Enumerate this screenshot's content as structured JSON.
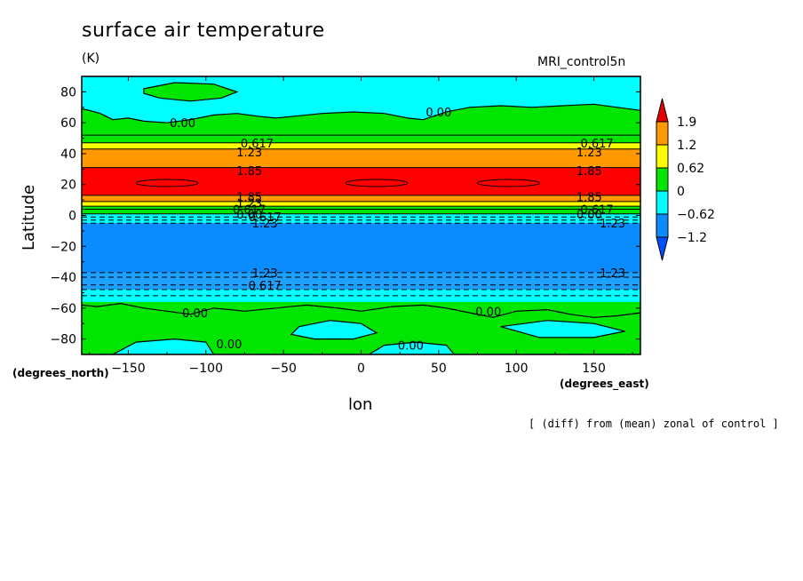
{
  "chart_data": {
    "type": "heatmap",
    "title": "surface air temperature",
    "units": "(K)",
    "run_label": "MRI_control5n",
    "xlabel": "lon",
    "ylabel": "Latitude",
    "xunit_label": "(degrees_east)",
    "yunit_label": "(degrees_north)",
    "note": "[ (diff) from (mean) zonal of control ]",
    "xlim": [
      -180,
      180
    ],
    "ylim": [
      -90,
      90
    ],
    "xticks": [
      "-150",
      "-100",
      "-50",
      "0",
      "50",
      "100",
      "150"
    ],
    "yticks": [
      "80",
      "60",
      "40",
      "20",
      "0",
      "-20",
      "-40",
      "-60",
      "-80"
    ],
    "colorbar": {
      "labels": [
        "1.9",
        "1.2",
        "0.62",
        "0",
        "−0.62",
        "−1.2"
      ],
      "colors": [
        "#e60000",
        "#ff9900",
        "#ffff00",
        "#00e600",
        "#00ffff",
        "#0a8cff",
        "#0050ff"
      ]
    },
    "zonal_bands": [
      {
        "lat_from": 90,
        "lat_to": 52,
        "class": "0 to 0.62",
        "color": "#00e600"
      },
      {
        "lat_from": 52,
        "lat_to": 47,
        "class": "0 to 0.62",
        "color": "#00e600"
      },
      {
        "lat_from": 47,
        "lat_to": 43,
        "class": "0.62 to 1.2",
        "color": "#ffff00"
      },
      {
        "lat_from": 43,
        "lat_to": 31,
        "class": "1.2 to 1.9",
        "color": "#ff9900"
      },
      {
        "lat_from": 31,
        "lat_to": 13,
        "class": "> 1.9",
        "color": "#ff0000"
      },
      {
        "lat_from": 13,
        "lat_to": 9,
        "class": "1.2 to 1.9",
        "color": "#ff9900"
      },
      {
        "lat_from": 9,
        "lat_to": 6,
        "class": "0.62 to 1.2",
        "color": "#ffff00"
      },
      {
        "lat_from": 6,
        "lat_to": 1,
        "class": "0 to 0.62",
        "color": "#00e600"
      },
      {
        "lat_from": 1,
        "lat_to": -5,
        "class": "-0.62 to 0",
        "color": "#00ffff"
      },
      {
        "lat_from": -5,
        "lat_to": -37,
        "class": "< -1.2",
        "color": "#0a8cff"
      },
      {
        "lat_from": -37,
        "lat_to": -48,
        "class": "-1.2 to -0.62",
        "color": "#1ea0ff"
      },
      {
        "lat_from": -48,
        "lat_to": -56,
        "class": "-0.62 to 0",
        "color": "#00ffff"
      },
      {
        "lat_from": -56,
        "lat_to": -90,
        "class": "0 to 0.62",
        "color": "#00e600"
      }
    ],
    "contour_labels": [
      {
        "text": "0.00",
        "lon": -115,
        "lat": 60
      },
      {
        "text": "0.00",
        "lon": 50,
        "lat": 67
      },
      {
        "text": "0.617",
        "lon": -67,
        "lat": 47
      },
      {
        "text": "0.617",
        "lon": 152,
        "lat": 47
      },
      {
        "text": "1.23",
        "lon": -72,
        "lat": 41
      },
      {
        "text": "1.23",
        "lon": 147,
        "lat": 41
      },
      {
        "text": "1.85",
        "lon": -72,
        "lat": 29
      },
      {
        "text": "1.85",
        "lon": 147,
        "lat": 29
      },
      {
        "text": "1.85",
        "lon": -72,
        "lat": 12
      },
      {
        "text": "1.85",
        "lon": 147,
        "lat": 12
      },
      {
        "text": "1.23",
        "lon": -72,
        "lat": 8
      },
      {
        "text": "0.617",
        "lon": -72,
        "lat": 4
      },
      {
        "text": "0.617",
        "lon": 152,
        "lat": 4
      },
      {
        "text": "0.00",
        "lon": -72,
        "lat": 1
      },
      {
        "text": "0.00",
        "lon": 147,
        "lat": 1
      },
      {
        "text": "0.617",
        "lon": -62,
        "lat": -1
      },
      {
        "text": "1.23",
        "lon": -62,
        "lat": -5
      },
      {
        "text": "1.23",
        "lon": 162,
        "lat": -5
      },
      {
        "text": "1.23",
        "lon": -62,
        "lat": -37
      },
      {
        "text": "1.23",
        "lon": 162,
        "lat": -37
      },
      {
        "text": "0.617",
        "lon": -62,
        "lat": -45
      },
      {
        "text": "0.00",
        "lon": -107,
        "lat": -63
      },
      {
        "text": "0.00",
        "lon": 82,
        "lat": -62
      },
      {
        "text": "0.00",
        "lon": -85,
        "lat": -83
      },
      {
        "text": "0.00",
        "lon": 32,
        "lat": -84
      }
    ]
  }
}
